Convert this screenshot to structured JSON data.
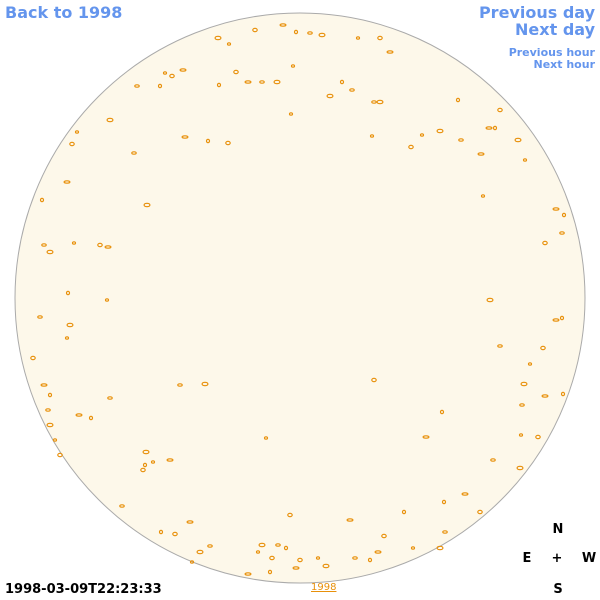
{
  "links": {
    "back": "Back to 1998",
    "previous_day": "Previous day",
    "next_day": "Next day",
    "previous_hour": "Previous hour",
    "next_hour": "Next hour"
  },
  "timestamp": "1998-03-09T22:23:33",
  "year_link": "1998",
  "compass": {
    "north": "N",
    "east": "E",
    "center": "+",
    "west": "W",
    "south": "S"
  }
}
